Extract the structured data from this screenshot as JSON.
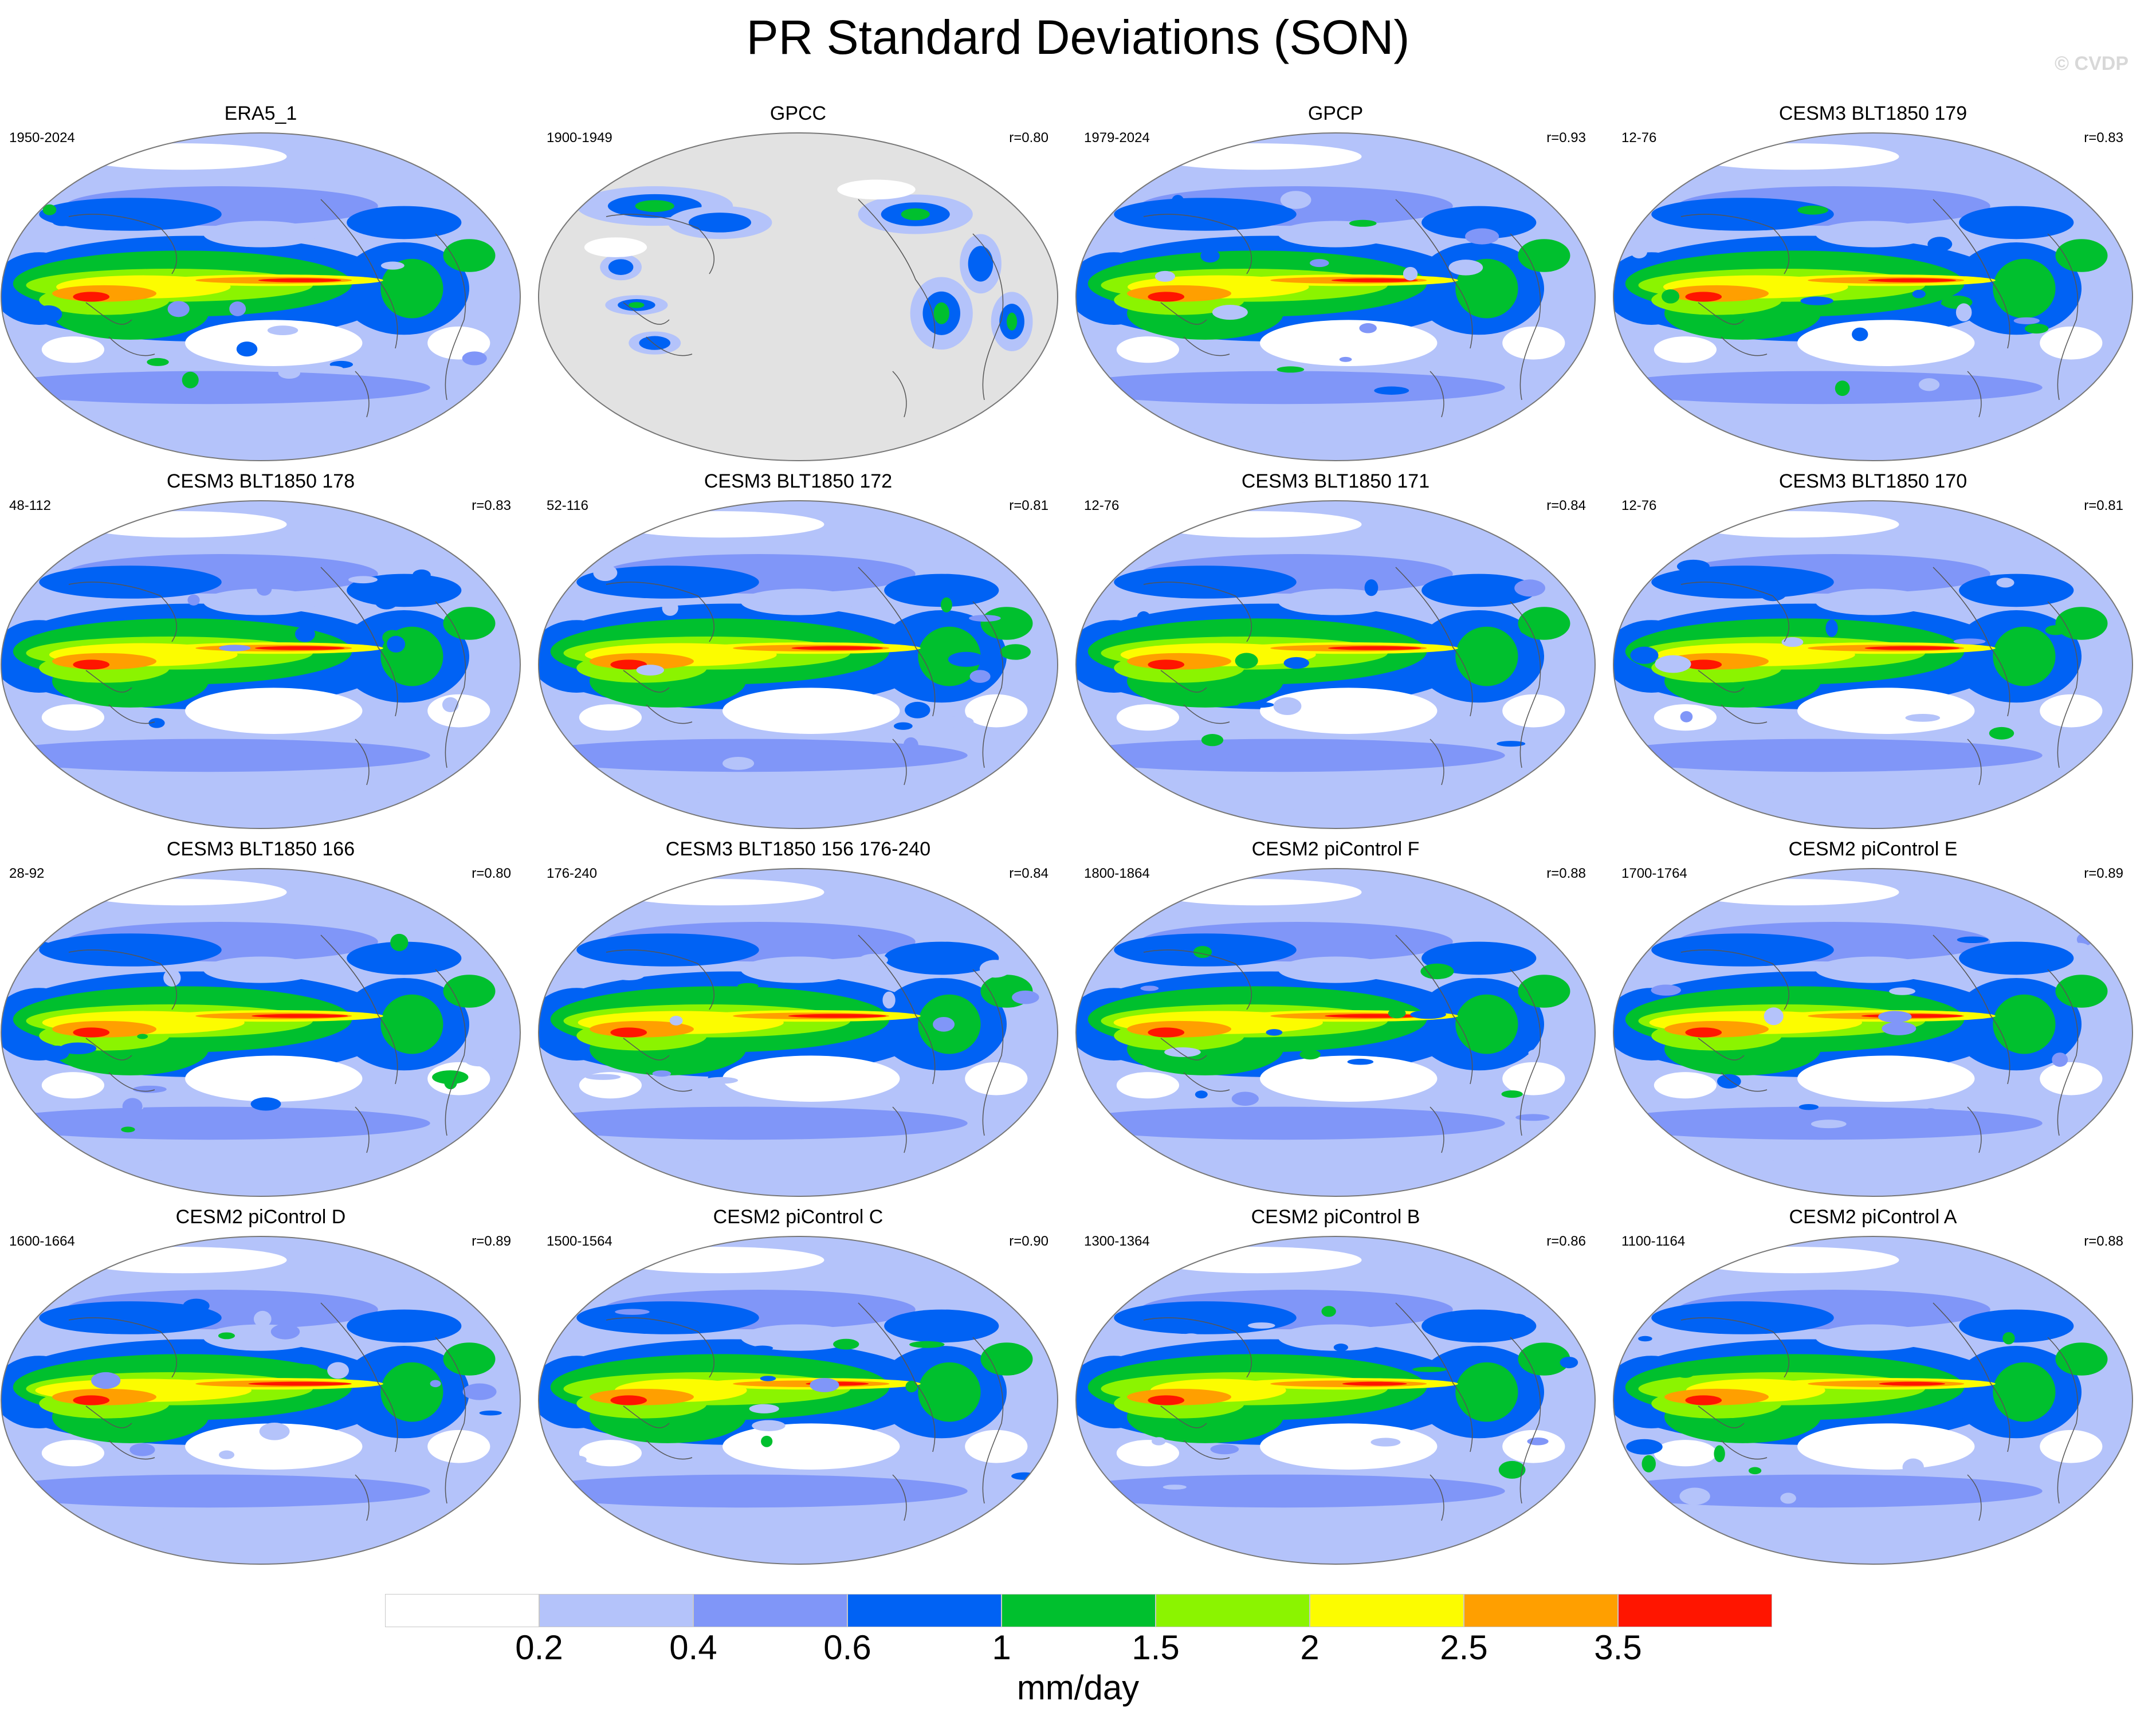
{
  "title": "PR Standard Deviations (SON)",
  "watermark": "© CVDP",
  "panels": [
    {
      "title": "ERA5_1",
      "years": "1950-2024",
      "corr": "",
      "variant": 0
    },
    {
      "title": "GPCC",
      "years": "1900-1949",
      "corr": "r=0.80",
      "variant": 1,
      "land_only": true
    },
    {
      "title": "GPCP",
      "years": "1979-2024",
      "corr": "r=0.93",
      "variant": 2
    },
    {
      "title": "CESM3 BLT1850 179",
      "years": "12-76",
      "corr": "r=0.83",
      "variant": 3
    },
    {
      "title": "CESM3 BLT1850 178",
      "years": "48-112",
      "corr": "r=0.83",
      "variant": 4
    },
    {
      "title": "CESM3 BLT1850 172",
      "years": "52-116",
      "corr": "r=0.81",
      "variant": 5
    },
    {
      "title": "CESM3 BLT1850 171",
      "years": "12-76",
      "corr": "r=0.84",
      "variant": 6
    },
    {
      "title": "CESM3 BLT1850 170",
      "years": "12-76",
      "corr": "r=0.81",
      "variant": 7
    },
    {
      "title": "CESM3 BLT1850 166",
      "years": "28-92",
      "corr": "r=0.80",
      "variant": 8
    },
    {
      "title": "CESM3 BLT1850 156 176-240",
      "years": "176-240",
      "corr": "r=0.84",
      "variant": 9
    },
    {
      "title": "CESM2 piControl F",
      "years": "1800-1864",
      "corr": "r=0.88",
      "variant": 10
    },
    {
      "title": "CESM2 piControl E",
      "years": "1700-1764",
      "corr": "r=0.89",
      "variant": 11
    },
    {
      "title": "CESM2 piControl D",
      "years": "1600-1664",
      "corr": "r=0.89",
      "variant": 12
    },
    {
      "title": "CESM2 piControl C",
      "years": "1500-1564",
      "corr": "r=0.90",
      "variant": 13
    },
    {
      "title": "CESM2 piControl B",
      "years": "1300-1364",
      "corr": "r=0.86",
      "variant": 14
    },
    {
      "title": "CESM2 piControl A",
      "years": "1100-1164",
      "corr": "r=0.88",
      "variant": 15
    }
  ],
  "colorbar": {
    "units": "mm/day",
    "colors": [
      "#ffffff",
      "#b4c3fa",
      "#8096f8",
      "#0062f4",
      "#00c02e",
      "#8bf400",
      "#fcfc00",
      "#ff9f00",
      "#ff1500"
    ],
    "labels": [
      "0.2",
      "0.4",
      "0.6",
      "1",
      "1.5",
      "2",
      "2.5",
      "3.5"
    ]
  },
  "land_mask_color": "#e2e2e2"
}
